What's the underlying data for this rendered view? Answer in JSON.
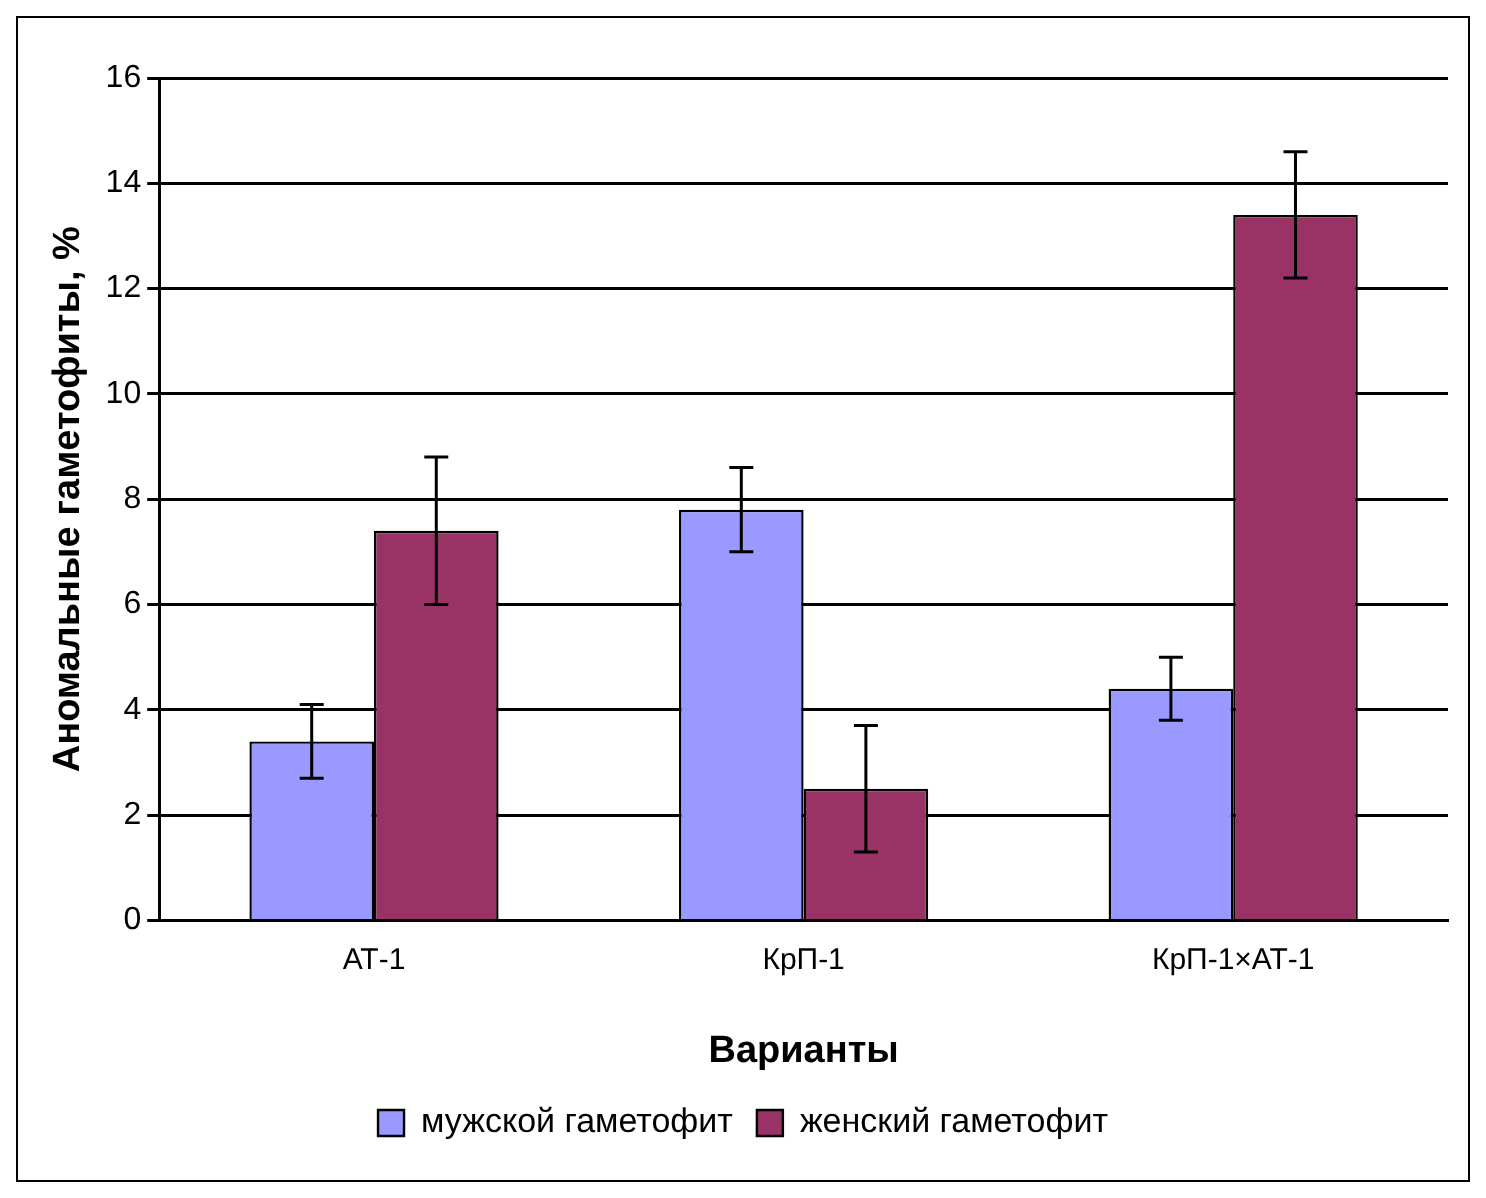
{
  "chart_data": {
    "type": "bar",
    "xlabel": "Варианты",
    "ylabel": "Аномальные гаметофиты, %",
    "categories": [
      "АТ-1",
      "КрП-1",
      "КрП-1×АТ-1"
    ],
    "series": [
      {
        "name": "мужской гаметофит",
        "color": "#9999ff",
        "values": [
          3.4,
          7.8,
          4.4
        ],
        "errors": [
          0.7,
          0.8,
          0.6
        ]
      },
      {
        "name": "женский гаметофит",
        "color": "#993366",
        "values": [
          7.4,
          2.5,
          13.4
        ],
        "errors": [
          1.4,
          1.2,
          1.2
        ]
      }
    ],
    "ylim": [
      0,
      16
    ],
    "yticks": [
      0,
      2,
      4,
      6,
      8,
      10,
      12,
      14,
      16
    ],
    "grid": "y",
    "legend": "bottom"
  }
}
